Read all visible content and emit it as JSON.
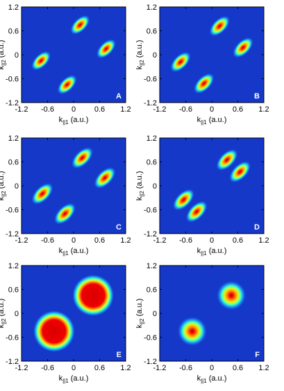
{
  "chart_data": [
    {
      "type": "heatmap",
      "panel_label": "A",
      "background": "#1538c8",
      "shape": "elongated",
      "xlabel": {
        "main": "k",
        "sub": "||1",
        "unit": "(a.u.)"
      },
      "ylabel": {
        "main": "k",
        "sub": "||2",
        "unit": "(a.u.)"
      },
      "xlim": [
        -1.2,
        1.2
      ],
      "ylim": [
        -1.2,
        1.2
      ],
      "xticks": [
        -1.2,
        -0.6,
        0,
        0.6,
        1.2
      ],
      "yticks": [
        -1.2,
        -0.6,
        0,
        0.6,
        1.2
      ],
      "peaks": {
        "x": [
          0.15,
          0.75,
          -0.75,
          -0.15
        ],
        "y": [
          0.75,
          0.15,
          -0.15,
          -0.75
        ],
        "width": [
          0.18,
          0.18,
          0.18,
          0.18
        ]
      }
    },
    {
      "type": "heatmap",
      "panel_label": "B",
      "background": "#1538c8",
      "shape": "elongated",
      "xlabel": {
        "main": "k",
        "sub": "||1",
        "unit": "(a.u.)"
      },
      "ylabel": {
        "main": "k",
        "sub": "||2",
        "unit": "(a.u.)"
      },
      "xlim": [
        -1.2,
        1.2
      ],
      "ylim": [
        -1.2,
        1.2
      ],
      "xticks": [
        -1.2,
        -0.6,
        0,
        0.6,
        1.2
      ],
      "yticks": [
        -1.2,
        -0.6,
        0,
        0.6,
        1.2
      ],
      "peaks": {
        "x": [
          0.18,
          0.72,
          -0.72,
          -0.18
        ],
        "y": [
          0.72,
          0.18,
          -0.18,
          -0.72
        ],
        "width": [
          0.19,
          0.19,
          0.19,
          0.19
        ]
      }
    },
    {
      "type": "heatmap",
      "panel_label": "C",
      "background": "#1538c8",
      "shape": "elongated",
      "xlabel": {
        "main": "k",
        "sub": "||1",
        "unit": "(a.u.)"
      },
      "ylabel": {
        "main": "k",
        "sub": "||2",
        "unit": "(a.u.)"
      },
      "xlim": [
        -1.2,
        1.2
      ],
      "ylim": [
        -1.2,
        1.2
      ],
      "xticks": [
        -1.2,
        -0.6,
        0,
        0.6,
        1.2
      ],
      "yticks": [
        -1.2,
        -0.6,
        0,
        0.6,
        1.2
      ],
      "peaks": {
        "x": [
          0.2,
          0.72,
          -0.72,
          -0.2
        ],
        "y": [
          0.7,
          0.2,
          -0.2,
          -0.7
        ],
        "width": [
          0.2,
          0.2,
          0.2,
          0.2
        ]
      }
    },
    {
      "type": "heatmap",
      "panel_label": "D",
      "background": "#1538c8",
      "shape": "elongated",
      "xlabel": {
        "main": "k",
        "sub": "||1",
        "unit": "(a.u.)"
      },
      "ylabel": {
        "main": "k",
        "sub": "||2",
        "unit": "(a.u.)"
      },
      "xlim": [
        -1.2,
        1.2
      ],
      "ylim": [
        -1.2,
        1.2
      ],
      "xticks": [
        -1.2,
        -0.6,
        0,
        0.6,
        1.2
      ],
      "yticks": [
        -1.2,
        -0.6,
        0,
        0.6,
        1.2
      ],
      "peaks": {
        "x": [
          0.35,
          0.65,
          -0.65,
          -0.35
        ],
        "y": [
          0.65,
          0.35,
          -0.35,
          -0.65
        ],
        "width": [
          0.2,
          0.2,
          0.2,
          0.2
        ]
      }
    },
    {
      "type": "heatmap",
      "panel_label": "E",
      "background": "#1538c8",
      "shape": "flat",
      "xlabel": {
        "main": "k",
        "sub": "||1",
        "unit": "(a.u.)"
      },
      "ylabel": {
        "main": "k",
        "sub": "||2",
        "unit": "(a.u.)"
      },
      "xlim": [
        -1.2,
        1.2
      ],
      "ylim": [
        -1.2,
        1.2
      ],
      "xticks": [
        -1.2,
        -0.6,
        0,
        0.6,
        1.2
      ],
      "yticks": [
        -1.2,
        -0.6,
        0,
        0.6,
        1.2
      ],
      "peaks": {
        "x": [
          0.45,
          -0.45
        ],
        "y": [
          0.45,
          -0.45
        ],
        "width": [
          0.42,
          0.42
        ]
      }
    },
    {
      "type": "heatmap",
      "panel_label": "F",
      "background": "#1538c8",
      "shape": "round",
      "xlabel": {
        "main": "k",
        "sub": "||1",
        "unit": "(a.u.)"
      },
      "ylabel": {
        "main": "k",
        "sub": "||2",
        "unit": "(a.u.)"
      },
      "xlim": [
        -1.2,
        1.2
      ],
      "ylim": [
        -1.2,
        1.2
      ],
      "xticks": [
        -1.2,
        -0.6,
        0,
        0.6,
        1.2
      ],
      "yticks": [
        -1.2,
        -0.6,
        0,
        0.6,
        1.2
      ],
      "peaks": {
        "x": [
          0.45,
          -0.45
        ],
        "y": [
          0.45,
          -0.45
        ],
        "width": [
          0.3,
          0.3
        ]
      }
    }
  ]
}
